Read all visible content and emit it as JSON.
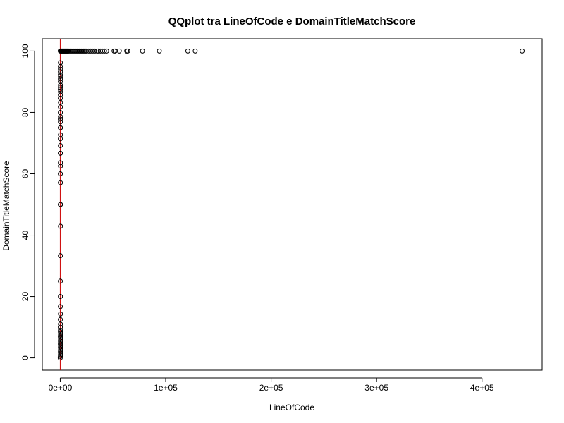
{
  "chart_data": {
    "type": "scatter",
    "title": "QQplot tra LineOfCode e DomainTitleMatchScore",
    "xlabel": "LineOfCode",
    "ylabel": "DomainTitleMatchScore",
    "xlim": [
      -17000,
      457000
    ],
    "ylim": [
      -4,
      104
    ],
    "x_ticks": [
      {
        "value": 0,
        "label": "0e+00"
      },
      {
        "value": 100000,
        "label": "1e+05"
      },
      {
        "value": 200000,
        "label": "2e+05"
      },
      {
        "value": 300000,
        "label": "3e+05"
      },
      {
        "value": 400000,
        "label": "4e+05"
      }
    ],
    "y_ticks": [
      {
        "value": 0,
        "label": "0"
      },
      {
        "value": 20,
        "label": "20"
      },
      {
        "value": 40,
        "label": "40"
      },
      {
        "value": 60,
        "label": "60"
      },
      {
        "value": 80,
        "label": "80"
      },
      {
        "value": 100,
        "label": "100"
      }
    ],
    "reference_line": {
      "type": "vertical",
      "x": 0,
      "color": "#cc0000"
    },
    "point_style": {
      "shape": "open-circle",
      "color": "#000000"
    },
    "grid": false,
    "legend": "none",
    "points": [
      {
        "x": 0,
        "y": 0
      },
      {
        "x": 100,
        "y": 0.5
      },
      {
        "x": 200,
        "y": 1
      },
      {
        "x": 300,
        "y": 1.5
      },
      {
        "x": 150,
        "y": 2
      },
      {
        "x": 250,
        "y": 2.5
      },
      {
        "x": 350,
        "y": 3
      },
      {
        "x": 200,
        "y": 3.5
      },
      {
        "x": 300,
        "y": 4
      },
      {
        "x": 100,
        "y": 4.5
      },
      {
        "x": 250,
        "y": 5
      },
      {
        "x": 150,
        "y": 5.5
      },
      {
        "x": 300,
        "y": 6
      },
      {
        "x": 200,
        "y": 6.5
      },
      {
        "x": 100,
        "y": 7
      },
      {
        "x": 250,
        "y": 7.5
      },
      {
        "x": 300,
        "y": 8
      },
      {
        "x": 150,
        "y": 8.5
      },
      {
        "x": 200,
        "y": 9
      },
      {
        "x": 100,
        "y": 10
      },
      {
        "x": 200,
        "y": 11
      },
      {
        "x": 100,
        "y": 12.5
      },
      {
        "x": 200,
        "y": 14.3
      },
      {
        "x": 100,
        "y": 16.7
      },
      {
        "x": 150,
        "y": 20
      },
      {
        "x": 100,
        "y": 25
      },
      {
        "x": 150,
        "y": 33.3
      },
      {
        "x": 200,
        "y": 42.9
      },
      {
        "x": 100,
        "y": 50
      },
      {
        "x": 200,
        "y": 50
      },
      {
        "x": 150,
        "y": 57.1
      },
      {
        "x": 100,
        "y": 60
      },
      {
        "x": 200,
        "y": 62.5
      },
      {
        "x": 150,
        "y": 63.6
      },
      {
        "x": 100,
        "y": 66.7
      },
      {
        "x": 200,
        "y": 66.7
      },
      {
        "x": 150,
        "y": 69.2
      },
      {
        "x": 100,
        "y": 71.4
      },
      {
        "x": 200,
        "y": 72.7
      },
      {
        "x": 100,
        "y": 75
      },
      {
        "x": 200,
        "y": 75
      },
      {
        "x": 150,
        "y": 76.9
      },
      {
        "x": 100,
        "y": 77.8
      },
      {
        "x": 200,
        "y": 78.6
      },
      {
        "x": 100,
        "y": 80
      },
      {
        "x": 150,
        "y": 81.8
      },
      {
        "x": 200,
        "y": 83.3
      },
      {
        "x": 100,
        "y": 84.6
      },
      {
        "x": 150,
        "y": 85.7
      },
      {
        "x": 200,
        "y": 86.7
      },
      {
        "x": 100,
        "y": 87.5
      },
      {
        "x": 150,
        "y": 88.2
      },
      {
        "x": 200,
        "y": 88.9
      },
      {
        "x": 100,
        "y": 90
      },
      {
        "x": 150,
        "y": 90.9
      },
      {
        "x": 200,
        "y": 91.7
      },
      {
        "x": 100,
        "y": 92.3
      },
      {
        "x": 150,
        "y": 93.3
      },
      {
        "x": 200,
        "y": 94.1
      },
      {
        "x": 100,
        "y": 95
      },
      {
        "x": 150,
        "y": 96.2
      },
      {
        "x": 0,
        "y": 100
      },
      {
        "x": 500,
        "y": 100
      },
      {
        "x": 1000,
        "y": 100
      },
      {
        "x": 1500,
        "y": 100
      },
      {
        "x": 2000,
        "y": 100
      },
      {
        "x": 2500,
        "y": 100
      },
      {
        "x": 3000,
        "y": 100
      },
      {
        "x": 3500,
        "y": 100
      },
      {
        "x": 4000,
        "y": 100
      },
      {
        "x": 4500,
        "y": 100
      },
      {
        "x": 5000,
        "y": 100
      },
      {
        "x": 5500,
        "y": 100
      },
      {
        "x": 6000,
        "y": 100
      },
      {
        "x": 6500,
        "y": 100
      },
      {
        "x": 7000,
        "y": 100
      },
      {
        "x": 7500,
        "y": 100
      },
      {
        "x": 8000,
        "y": 100
      },
      {
        "x": 9000,
        "y": 100
      },
      {
        "x": 10000,
        "y": 100
      },
      {
        "x": 11000,
        "y": 100
      },
      {
        "x": 12000,
        "y": 100
      },
      {
        "x": 13000,
        "y": 100
      },
      {
        "x": 14000,
        "y": 100
      },
      {
        "x": 15000,
        "y": 100
      },
      {
        "x": 16000,
        "y": 100
      },
      {
        "x": 17000,
        "y": 100
      },
      {
        "x": 18000,
        "y": 100
      },
      {
        "x": 19000,
        "y": 100
      },
      {
        "x": 20000,
        "y": 100
      },
      {
        "x": 21000,
        "y": 100
      },
      {
        "x": 22000,
        "y": 100
      },
      {
        "x": 23000,
        "y": 100
      },
      {
        "x": 24000,
        "y": 100
      },
      {
        "x": 25000,
        "y": 100
      },
      {
        "x": 27000,
        "y": 100
      },
      {
        "x": 29000,
        "y": 100
      },
      {
        "x": 31000,
        "y": 100
      },
      {
        "x": 33000,
        "y": 100
      },
      {
        "x": 35000,
        "y": 100
      },
      {
        "x": 36000,
        "y": 100
      },
      {
        "x": 38000,
        "y": 100
      },
      {
        "x": 40000,
        "y": 100
      },
      {
        "x": 42000,
        "y": 100
      },
      {
        "x": 44000,
        "y": 100
      },
      {
        "x": 51000,
        "y": 100
      },
      {
        "x": 52000,
        "y": 100
      },
      {
        "x": 56000,
        "y": 100
      },
      {
        "x": 63000,
        "y": 100
      },
      {
        "x": 64000,
        "y": 100
      },
      {
        "x": 78000,
        "y": 100
      },
      {
        "x": 94000,
        "y": 100
      },
      {
        "x": 121000,
        "y": 100
      },
      {
        "x": 128000,
        "y": 100
      },
      {
        "x": 438000,
        "y": 100
      }
    ]
  }
}
